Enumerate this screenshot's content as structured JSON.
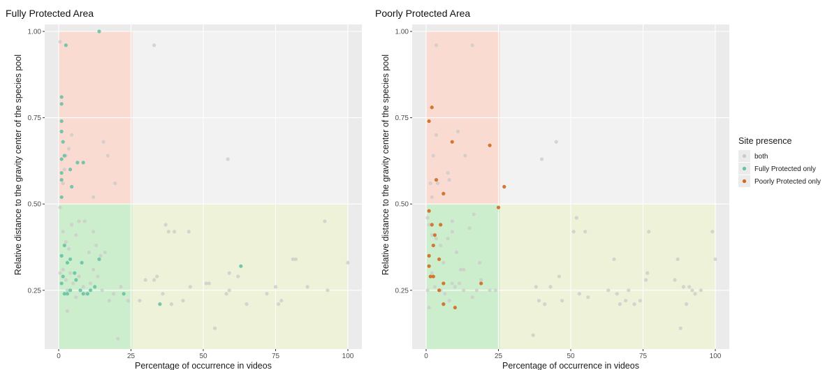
{
  "colors": {
    "panel_bg": "#ebebeb",
    "grid_major": "#ffffff",
    "region_red": "#fadbd2",
    "region_grey": "#f2f2f2",
    "region_green": "#cdeecd",
    "region_yellow": "#eef2d8",
    "both": "#c9c9c9",
    "fully_only": "#66c2a5",
    "poorly_only": "#d2691e"
  },
  "legend": {
    "title": "Site presence",
    "entries": [
      {
        "key": "both",
        "label": "both"
      },
      {
        "key": "fully_only",
        "label": "Fully Protected only"
      },
      {
        "key": "poorly_only",
        "label": "Poorly Protected only"
      }
    ]
  },
  "chart_data": [
    {
      "type": "scatter",
      "title": "Fully Protected Area",
      "xlabel": "Percentage of occurrence in videos",
      "ylabel": "Relative distance to the gravity center of the species pool",
      "xlim": [
        0,
        100
      ],
      "ylim": [
        0.1,
        1.0
      ],
      "x_ticks": [
        0,
        25,
        50,
        75,
        100
      ],
      "y_ticks": [
        0.25,
        0.5,
        0.75,
        1.0
      ],
      "x_tick_labels": [
        "0",
        "25",
        "50",
        "75",
        "100"
      ],
      "y_tick_labels": [
        "0.25",
        "0.50",
        "0.75",
        "1.00"
      ],
      "regions": [
        {
          "x": [
            0,
            25.5
          ],
          "y": [
            0.5,
            1.0
          ],
          "color": "region_red"
        },
        {
          "x": [
            25.5,
            100
          ],
          "y": [
            0.5,
            1.0
          ],
          "color": "region_grey"
        },
        {
          "x": [
            0,
            25.5
          ],
          "y": [
            0.08,
            0.5
          ],
          "color": "region_green"
        },
        {
          "x": [
            25.5,
            100
          ],
          "y": [
            0.08,
            0.5
          ],
          "color": "region_yellow"
        }
      ],
      "series": [
        {
          "key": "both",
          "points": [
            [
              0.5,
              0.97
            ],
            [
              2.5,
              0.64
            ],
            [
              3.5,
              0.66
            ],
            [
              4.5,
              0.7
            ],
            [
              1.5,
              0.56
            ],
            [
              2,
              0.6
            ],
            [
              15.5,
              0.68
            ],
            [
              17,
              0.64
            ],
            [
              12,
              0.52
            ],
            [
              19.5,
              0.56
            ],
            [
              33,
              0.96
            ],
            [
              58.5,
              0.63
            ],
            [
              0.5,
              0.49
            ],
            [
              1.5,
              0.42
            ],
            [
              2.5,
              0.39
            ],
            [
              3.5,
              0.37
            ],
            [
              4.5,
              0.44
            ],
            [
              6,
              0.41
            ],
            [
              7,
              0.45
            ],
            [
              9,
              0.45
            ],
            [
              10.5,
              0.36
            ],
            [
              12,
              0.42
            ],
            [
              13,
              0.38
            ],
            [
              14.5,
              0.35
            ],
            [
              16,
              0.36
            ],
            [
              0.5,
              0.3
            ],
            [
              1.5,
              0.31
            ],
            [
              2.5,
              0.28
            ],
            [
              3,
              0.25
            ],
            [
              4,
              0.3
            ],
            [
              5,
              0.27
            ],
            [
              6,
              0.23
            ],
            [
              7,
              0.29
            ],
            [
              8.5,
              0.26
            ],
            [
              9.5,
              0.24
            ],
            [
              11,
              0.27
            ],
            [
              12,
              0.31
            ],
            [
              13.5,
              0.29
            ],
            [
              15,
              0.25
            ],
            [
              17.5,
              0.22
            ],
            [
              19,
              0.24
            ],
            [
              3,
              0.19
            ],
            [
              20.5,
              0.11
            ],
            [
              21.5,
              0.26
            ],
            [
              24,
              0.22
            ],
            [
              28,
              0.22
            ],
            [
              30,
              0.28
            ],
            [
              33,
              0.28
            ],
            [
              34,
              0.29
            ],
            [
              36,
              0.24
            ],
            [
              37,
              0.44
            ],
            [
              38,
              0.42
            ],
            [
              40,
              0.42
            ],
            [
              45,
              0.42
            ],
            [
              39,
              0.21
            ],
            [
              43,
              0.22
            ],
            [
              45.5,
              0.26
            ],
            [
              51,
              0.27
            ],
            [
              52,
              0.27
            ],
            [
              54,
              0.14
            ],
            [
              58,
              0.24
            ],
            [
              59,
              0.25
            ],
            [
              62,
              0.29
            ],
            [
              65,
              0.21
            ],
            [
              72,
              0.24
            ],
            [
              75,
              0.26
            ],
            [
              76,
              0.21
            ],
            [
              77,
              0.22
            ],
            [
              81,
              0.34
            ],
            [
              82,
              0.34
            ],
            [
              86,
              0.26
            ],
            [
              92,
              0.45
            ],
            [
              93,
              0.25
            ],
            [
              100,
              0.33
            ],
            [
              59,
              0.3
            ]
          ]
        },
        {
          "key": "fully_only",
          "points": [
            [
              14,
              1.0
            ],
            [
              2.5,
              0.96
            ],
            [
              1,
              0.81
            ],
            [
              1,
              0.79
            ],
            [
              1,
              0.74
            ],
            [
              1,
              0.71
            ],
            [
              1.5,
              0.68
            ],
            [
              2,
              0.64
            ],
            [
              1,
              0.63
            ],
            [
              1,
              0.59
            ],
            [
              1,
              0.57
            ],
            [
              4,
              0.6
            ],
            [
              6.5,
              0.62
            ],
            [
              8.5,
              0.62
            ],
            [
              4.5,
              0.55
            ],
            [
              1,
              0.52
            ],
            [
              1,
              0.35
            ],
            [
              2,
              0.38
            ],
            [
              3,
              0.33
            ],
            [
              4,
              0.34
            ],
            [
              5.5,
              0.3
            ],
            [
              8,
              0.33
            ],
            [
              14,
              0.34
            ],
            [
              1,
              0.27
            ],
            [
              2,
              0.24
            ],
            [
              3,
              0.24
            ],
            [
              4,
              0.25
            ],
            [
              6,
              0.28
            ],
            [
              7.5,
              0.25
            ],
            [
              8.5,
              0.24
            ],
            [
              10,
              0.24
            ],
            [
              11,
              0.25
            ],
            [
              12.5,
              0.26
            ],
            [
              1.5,
              0.29
            ],
            [
              22.5,
              0.24
            ],
            [
              35,
              0.21
            ],
            [
              63,
              0.32
            ]
          ]
        }
      ]
    },
    {
      "type": "scatter",
      "title": "Poorly Protected Area",
      "xlabel": "Percentage of occurrence in videos",
      "ylabel": "Relative distance to the gravity center of the species pool",
      "xlim": [
        0,
        100
      ],
      "ylim": [
        0.1,
        1.0
      ],
      "x_ticks": [
        0,
        25,
        50,
        75,
        100
      ],
      "y_ticks": [
        0.25,
        0.5,
        0.75,
        1.0
      ],
      "x_tick_labels": [
        "0",
        "25",
        "50",
        "75",
        "100"
      ],
      "y_tick_labels": [
        "0.25",
        "0.50",
        "0.75",
        "1.00"
      ],
      "regions": [
        {
          "x": [
            0,
            25.5
          ],
          "y": [
            0.5,
            1.0
          ],
          "color": "region_red"
        },
        {
          "x": [
            25.5,
            100
          ],
          "y": [
            0.5,
            1.0
          ],
          "color": "region_grey"
        },
        {
          "x": [
            0,
            25.5
          ],
          "y": [
            0.08,
            0.5
          ],
          "color": "region_green"
        },
        {
          "x": [
            25.5,
            100
          ],
          "y": [
            0.08,
            0.5
          ],
          "color": "region_yellow"
        }
      ],
      "series": [
        {
          "key": "both",
          "points": [
            [
              3.5,
              0.96
            ],
            [
              16,
              0.96
            ],
            [
              2.5,
              0.64
            ],
            [
              3.5,
              0.7
            ],
            [
              7.5,
              0.59
            ],
            [
              8,
              0.57
            ],
            [
              11,
              0.71
            ],
            [
              13.5,
              0.64
            ],
            [
              4,
              0.56
            ],
            [
              1.5,
              0.56
            ],
            [
              2,
              0.52
            ],
            [
              40,
              0.63
            ],
            [
              45,
              0.68
            ],
            [
              0.5,
              0.46
            ],
            [
              1,
              0.44
            ],
            [
              2,
              0.41
            ],
            [
              3.5,
              0.4
            ],
            [
              5,
              0.38
            ],
            [
              6,
              0.33
            ],
            [
              7.5,
              0.4
            ],
            [
              9,
              0.45
            ],
            [
              9,
              0.42
            ],
            [
              10.5,
              0.36
            ],
            [
              12,
              0.31
            ],
            [
              13,
              0.31
            ],
            [
              15,
              0.43
            ],
            [
              16.5,
              0.47
            ],
            [
              18.5,
              0.33
            ],
            [
              0.5,
              0.25
            ],
            [
              1,
              0.2
            ],
            [
              2,
              0.3
            ],
            [
              3,
              0.26
            ],
            [
              5,
              0.25
            ],
            [
              6.5,
              0.24
            ],
            [
              8,
              0.22
            ],
            [
              9,
              0.27
            ],
            [
              10,
              0.26
            ],
            [
              11.5,
              0.27
            ],
            [
              13,
              0.25
            ],
            [
              16,
              0.23
            ],
            [
              17.5,
              0.25
            ],
            [
              19,
              0.28
            ],
            [
              22,
              0.25
            ],
            [
              24,
              0.25
            ],
            [
              37,
              0.12
            ],
            [
              38,
              0.26
            ],
            [
              39,
              0.22
            ],
            [
              41,
              0.21
            ],
            [
              43,
              0.26
            ],
            [
              46,
              0.29
            ],
            [
              47,
              0.22
            ],
            [
              51,
              0.42
            ],
            [
              52,
              0.46
            ],
            [
              53,
              0.24
            ],
            [
              55,
              0.42
            ],
            [
              56,
              0.23
            ],
            [
              63,
              0.25
            ],
            [
              65,
              0.34
            ],
            [
              66,
              0.24
            ],
            [
              67,
              0.21
            ],
            [
              69,
              0.22
            ],
            [
              70,
              0.25
            ],
            [
              72,
              0.21
            ],
            [
              74,
              0.22
            ],
            [
              76,
              0.28
            ],
            [
              76.5,
              0.3
            ],
            [
              77,
              0.42
            ],
            [
              86,
              0.28
            ],
            [
              87,
              0.34
            ],
            [
              88,
              0.14
            ],
            [
              89,
              0.26
            ],
            [
              90,
              0.21
            ],
            [
              91,
              0.26
            ],
            [
              92,
              0.25
            ],
            [
              93,
              0.24
            ],
            [
              95,
              0.25
            ],
            [
              99,
              0.42
            ],
            [
              100,
              0.34
            ]
          ]
        },
        {
          "key": "poorly_only",
          "points": [
            [
              2,
              0.78
            ],
            [
              1,
              0.74
            ],
            [
              3.5,
              0.57
            ],
            [
              9,
              0.68
            ],
            [
              6,
              0.53
            ],
            [
              22,
              0.67
            ],
            [
              27,
              0.55
            ],
            [
              25,
              0.49
            ],
            [
              1,
              0.48
            ],
            [
              2,
              0.44
            ],
            [
              5,
              0.44
            ],
            [
              3,
              0.41
            ],
            [
              2.5,
              0.38
            ],
            [
              1,
              0.35
            ],
            [
              4.5,
              0.34
            ],
            [
              1,
              0.32
            ],
            [
              1.5,
              0.29
            ],
            [
              2.5,
              0.29
            ],
            [
              6,
              0.27
            ],
            [
              4.5,
              0.25
            ],
            [
              6,
              0.21
            ],
            [
              10,
              0.2
            ],
            [
              19,
              0.27
            ]
          ]
        }
      ]
    }
  ]
}
